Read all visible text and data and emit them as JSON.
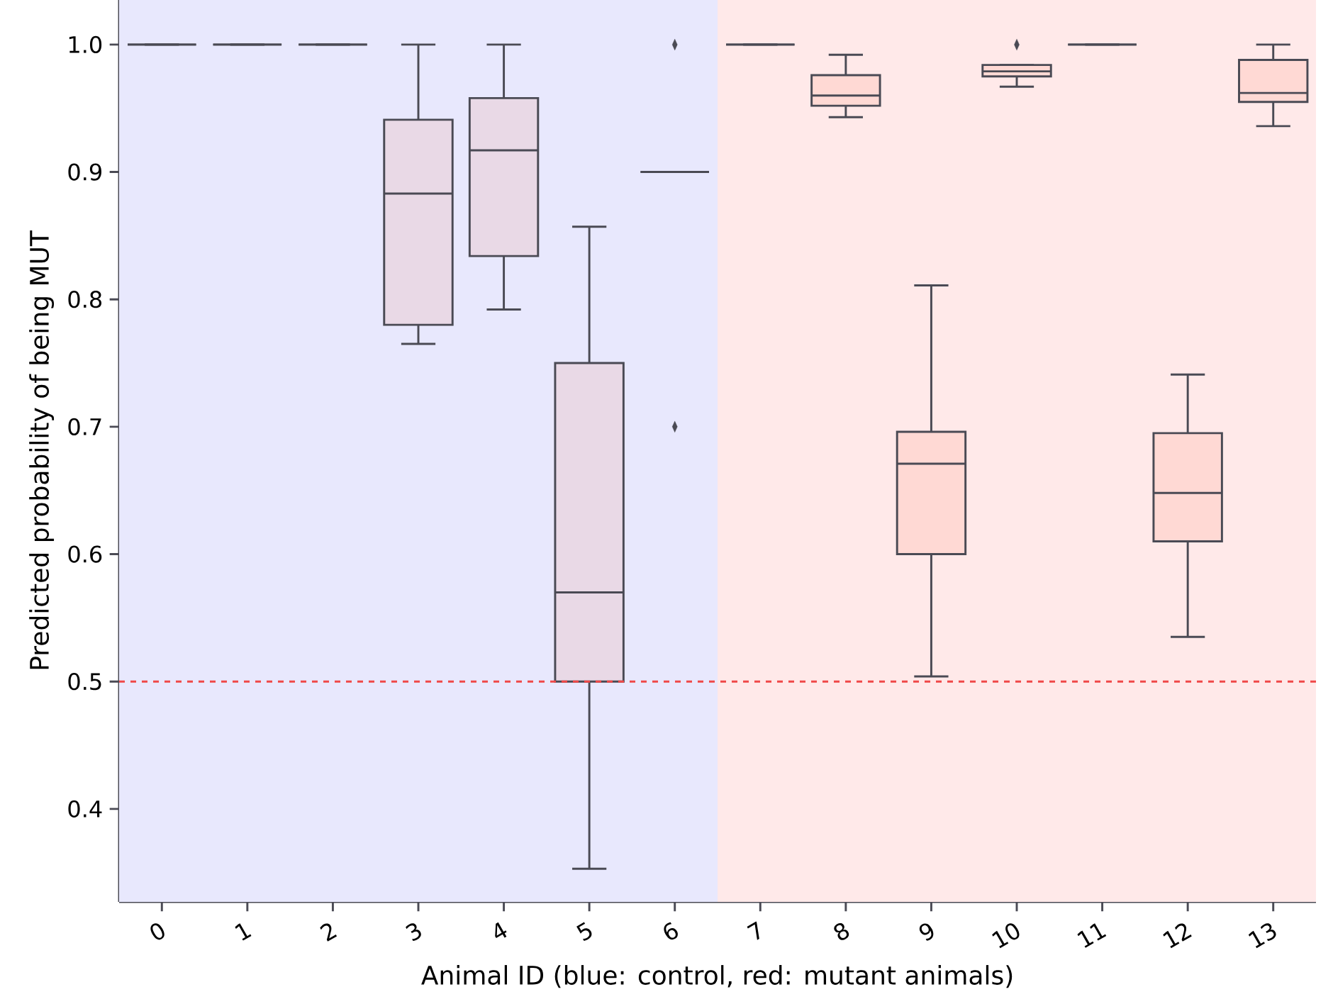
{
  "chart_data": {
    "type": "box",
    "xlabel": "Animal ID (blue: control, red: mutant animals)",
    "ylabel": "Predicted probability of being MUT",
    "categories": [
      "0",
      "1",
      "2",
      "3",
      "4",
      "5",
      "6",
      "7",
      "8",
      "9",
      "10",
      "11",
      "12",
      "13"
    ],
    "boxes": [
      {
        "low": 1.0,
        "q1": 1.0,
        "median": 1.0,
        "q3": 1.0,
        "high": 1.0
      },
      {
        "low": 1.0,
        "q1": 1.0,
        "median": 1.0,
        "q3": 1.0,
        "high": 1.0
      },
      {
        "low": 1.0,
        "q1": 1.0,
        "median": 1.0,
        "q3": 1.0,
        "high": 1.0
      },
      {
        "low": 0.765,
        "q1": 0.78,
        "median": 0.883,
        "q3": 0.941,
        "high": 1.0
      },
      {
        "low": 0.792,
        "q1": 0.834,
        "median": 0.917,
        "q3": 0.958,
        "high": 1.0
      },
      {
        "low": 0.353,
        "q1": 0.5,
        "median": 0.57,
        "q3": 0.75,
        "high": 0.857
      },
      {
        "low": 0.9,
        "q1": 0.9,
        "median": 0.9,
        "q3": 0.9,
        "high": 0.9,
        "outliers": [
          1.0,
          0.7
        ]
      },
      {
        "low": 1.0,
        "q1": 1.0,
        "median": 1.0,
        "q3": 1.0,
        "high": 1.0
      },
      {
        "low": 0.943,
        "q1": 0.952,
        "median": 0.96,
        "q3": 0.976,
        "high": 0.992
      },
      {
        "low": 0.504,
        "q1": 0.6,
        "median": 0.671,
        "q3": 0.696,
        "high": 0.811
      },
      {
        "low": 0.967,
        "q1": 0.975,
        "median": 0.979,
        "q3": 0.984,
        "high": 0.984,
        "outliers": [
          1.0
        ]
      },
      {
        "low": 1.0,
        "q1": 1.0,
        "median": 1.0,
        "q3": 1.0,
        "high": 1.0
      },
      {
        "low": 0.535,
        "q1": 0.61,
        "median": 0.648,
        "q3": 0.695,
        "high": 0.741
      },
      {
        "low": 0.936,
        "q1": 0.955,
        "median": 0.962,
        "q3": 0.988,
        "high": 1.0
      }
    ],
    "colors": [
      "#4a4a54",
      "#4a4a54",
      "#4a4a54",
      "#e9d9e6",
      "#e9d9e6",
      "#e9d9e6",
      "#4a4a54",
      "#4a4a54",
      "#ffd9d4",
      "#ffd9d4",
      "#ffd9d4",
      "#4a4a54",
      "#ffd9d4",
      "#ffd9d4"
    ],
    "ylim": [
      0.327,
      1.035
    ],
    "yticks": [
      0.4,
      0.5,
      0.6,
      0.7,
      0.8,
      0.9,
      {
        "value": 1.0,
        "label": "1.0"
      }
    ],
    "ref_lines": [
      {
        "axis": "y",
        "value": 0.5,
        "color": "#f04848",
        "line_style": "dashed"
      }
    ],
    "bands": [
      {
        "axis": "x",
        "from": "0",
        "to": "6",
        "color": "#e8e8fd"
      },
      {
        "axis": "x",
        "from": "7",
        "to": "13",
        "color": "#ffe9e9"
      }
    ]
  }
}
